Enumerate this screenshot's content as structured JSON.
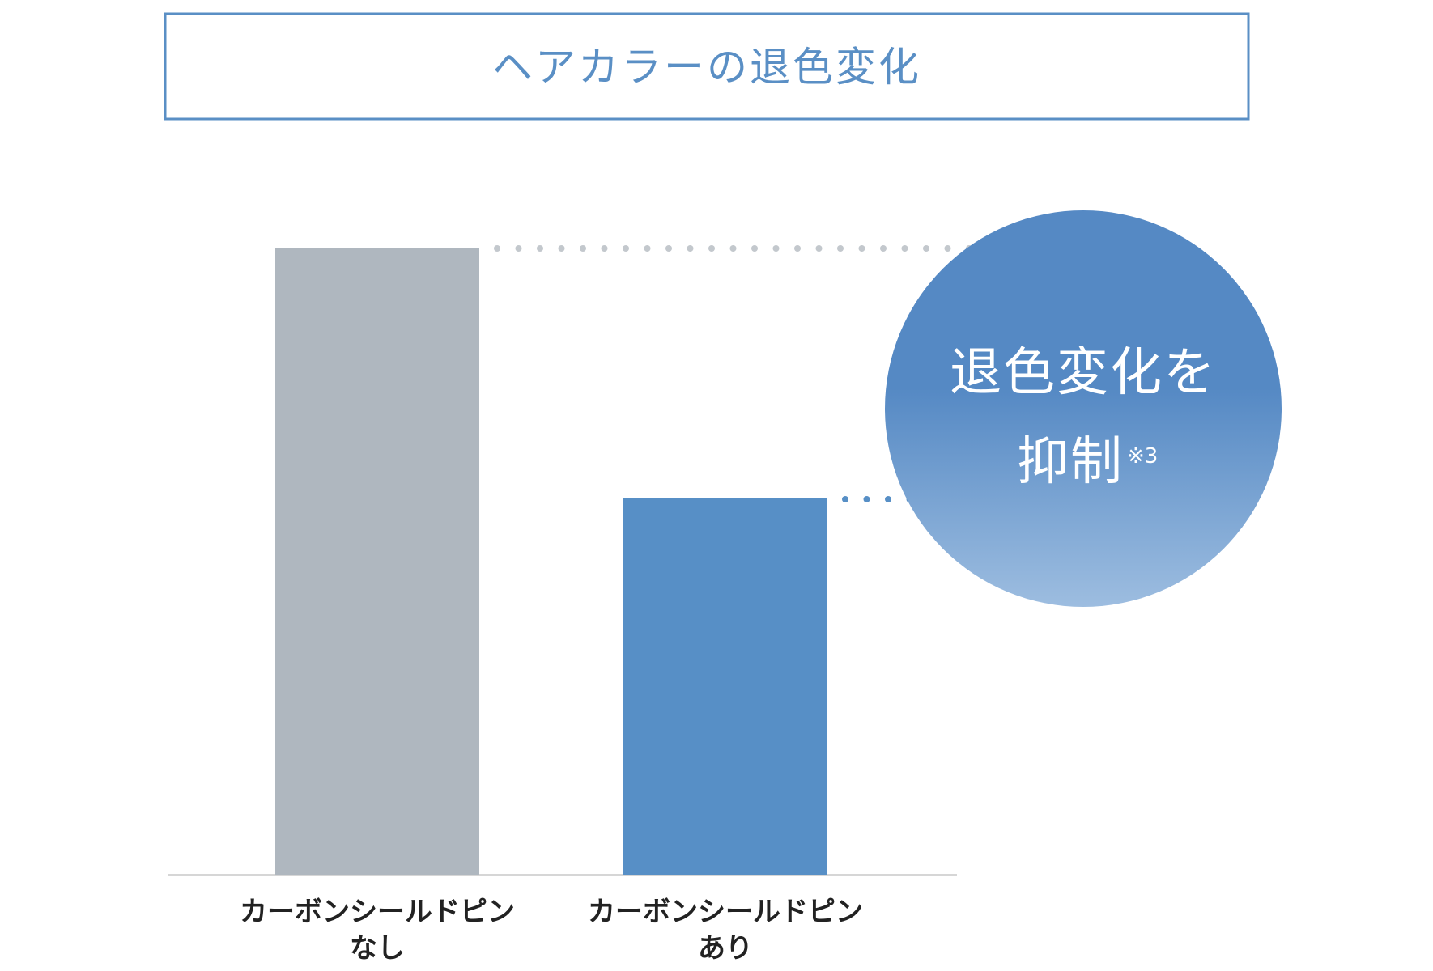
{
  "chart_data": {
    "type": "bar",
    "title": "ヘアカラーの退色変化",
    "xlabel": "",
    "ylabel": "",
    "grid": false,
    "categories": [
      [
        "カーボンシールドピン",
        "なし"
      ],
      [
        "カーボンシールドピン",
        "あり"
      ]
    ],
    "values": [
      100,
      60
    ],
    "ylim": [
      0,
      100
    ],
    "callout": {
      "line1": "退色変化を",
      "line2": "抑制",
      "note": "※3"
    }
  },
  "colors": {
    "title_border": "#5a8fc5",
    "title_text": "#5a8fc5",
    "bar_without": "#afb7bf",
    "bar_with": "#578fc6",
    "dots_without": "#c3c8cd",
    "dots_with": "#578fc6",
    "axis": "#d6d6d6",
    "label_text": "#222222",
    "badge_top": "#5589c4",
    "badge_bottom": "#9dbde0",
    "badge_text": "#ffffff"
  }
}
